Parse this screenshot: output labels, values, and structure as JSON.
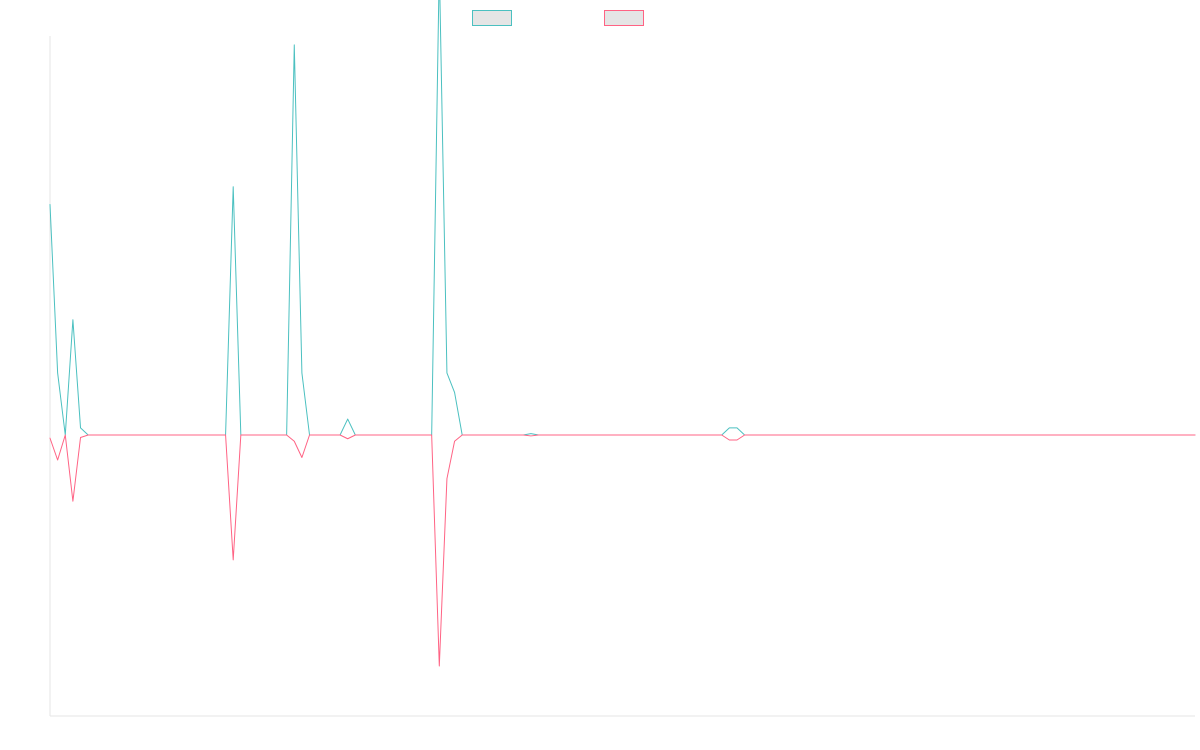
{
  "chart_data": {
    "type": "line",
    "title": "",
    "xlabel": "",
    "ylabel": "",
    "grid": false,
    "legend_position": "top-center",
    "x_count": 151,
    "ylim": [
      -45.0,
      45.0
    ],
    "series": [
      {
        "name": "",
        "color": "#4bc0c0",
        "fill": "#e5e5e5",
        "points": [
          [
            0,
            26
          ],
          [
            1,
            7
          ],
          [
            2,
            0
          ],
          [
            3,
            13
          ],
          [
            4,
            0.8
          ],
          [
            5,
            0
          ],
          [
            23,
            0
          ],
          [
            24,
            28
          ],
          [
            25,
            0
          ],
          [
            31,
            0
          ],
          [
            32,
            44
          ],
          [
            33,
            7
          ],
          [
            34,
            0
          ],
          [
            38,
            0
          ],
          [
            39,
            1.8
          ],
          [
            40,
            0
          ],
          [
            50,
            0
          ],
          [
            51,
            53
          ],
          [
            52,
            7
          ],
          [
            53,
            4.8
          ],
          [
            54,
            0
          ],
          [
            62,
            0
          ],
          [
            63,
            0.15
          ],
          [
            64,
            0
          ],
          [
            88,
            0
          ],
          [
            89,
            0.8
          ],
          [
            90,
            0.8
          ],
          [
            91,
            0
          ],
          [
            150,
            0
          ]
        ]
      },
      {
        "name": "",
        "color": "#ff6384",
        "fill": "#e5e5e5",
        "points": [
          [
            0,
            -0.5
          ],
          [
            1,
            -4
          ],
          [
            2,
            0
          ],
          [
            3,
            -10.6
          ],
          [
            4,
            -0.4
          ],
          [
            5,
            0
          ],
          [
            23,
            0
          ],
          [
            24,
            -20
          ],
          [
            25,
            0
          ],
          [
            31,
            0
          ],
          [
            32,
            -1
          ],
          [
            33,
            -3.6
          ],
          [
            34,
            0
          ],
          [
            38,
            0
          ],
          [
            39,
            -0.6
          ],
          [
            40,
            0
          ],
          [
            50,
            0
          ],
          [
            51,
            -37
          ],
          [
            52,
            -7
          ],
          [
            53,
            -1
          ],
          [
            54,
            0
          ],
          [
            62,
            0
          ],
          [
            63,
            -0.15
          ],
          [
            64,
            0
          ],
          [
            88,
            0
          ],
          [
            89,
            -0.8
          ],
          [
            90,
            -0.8
          ],
          [
            91,
            0
          ],
          [
            150,
            0
          ]
        ]
      }
    ]
  }
}
